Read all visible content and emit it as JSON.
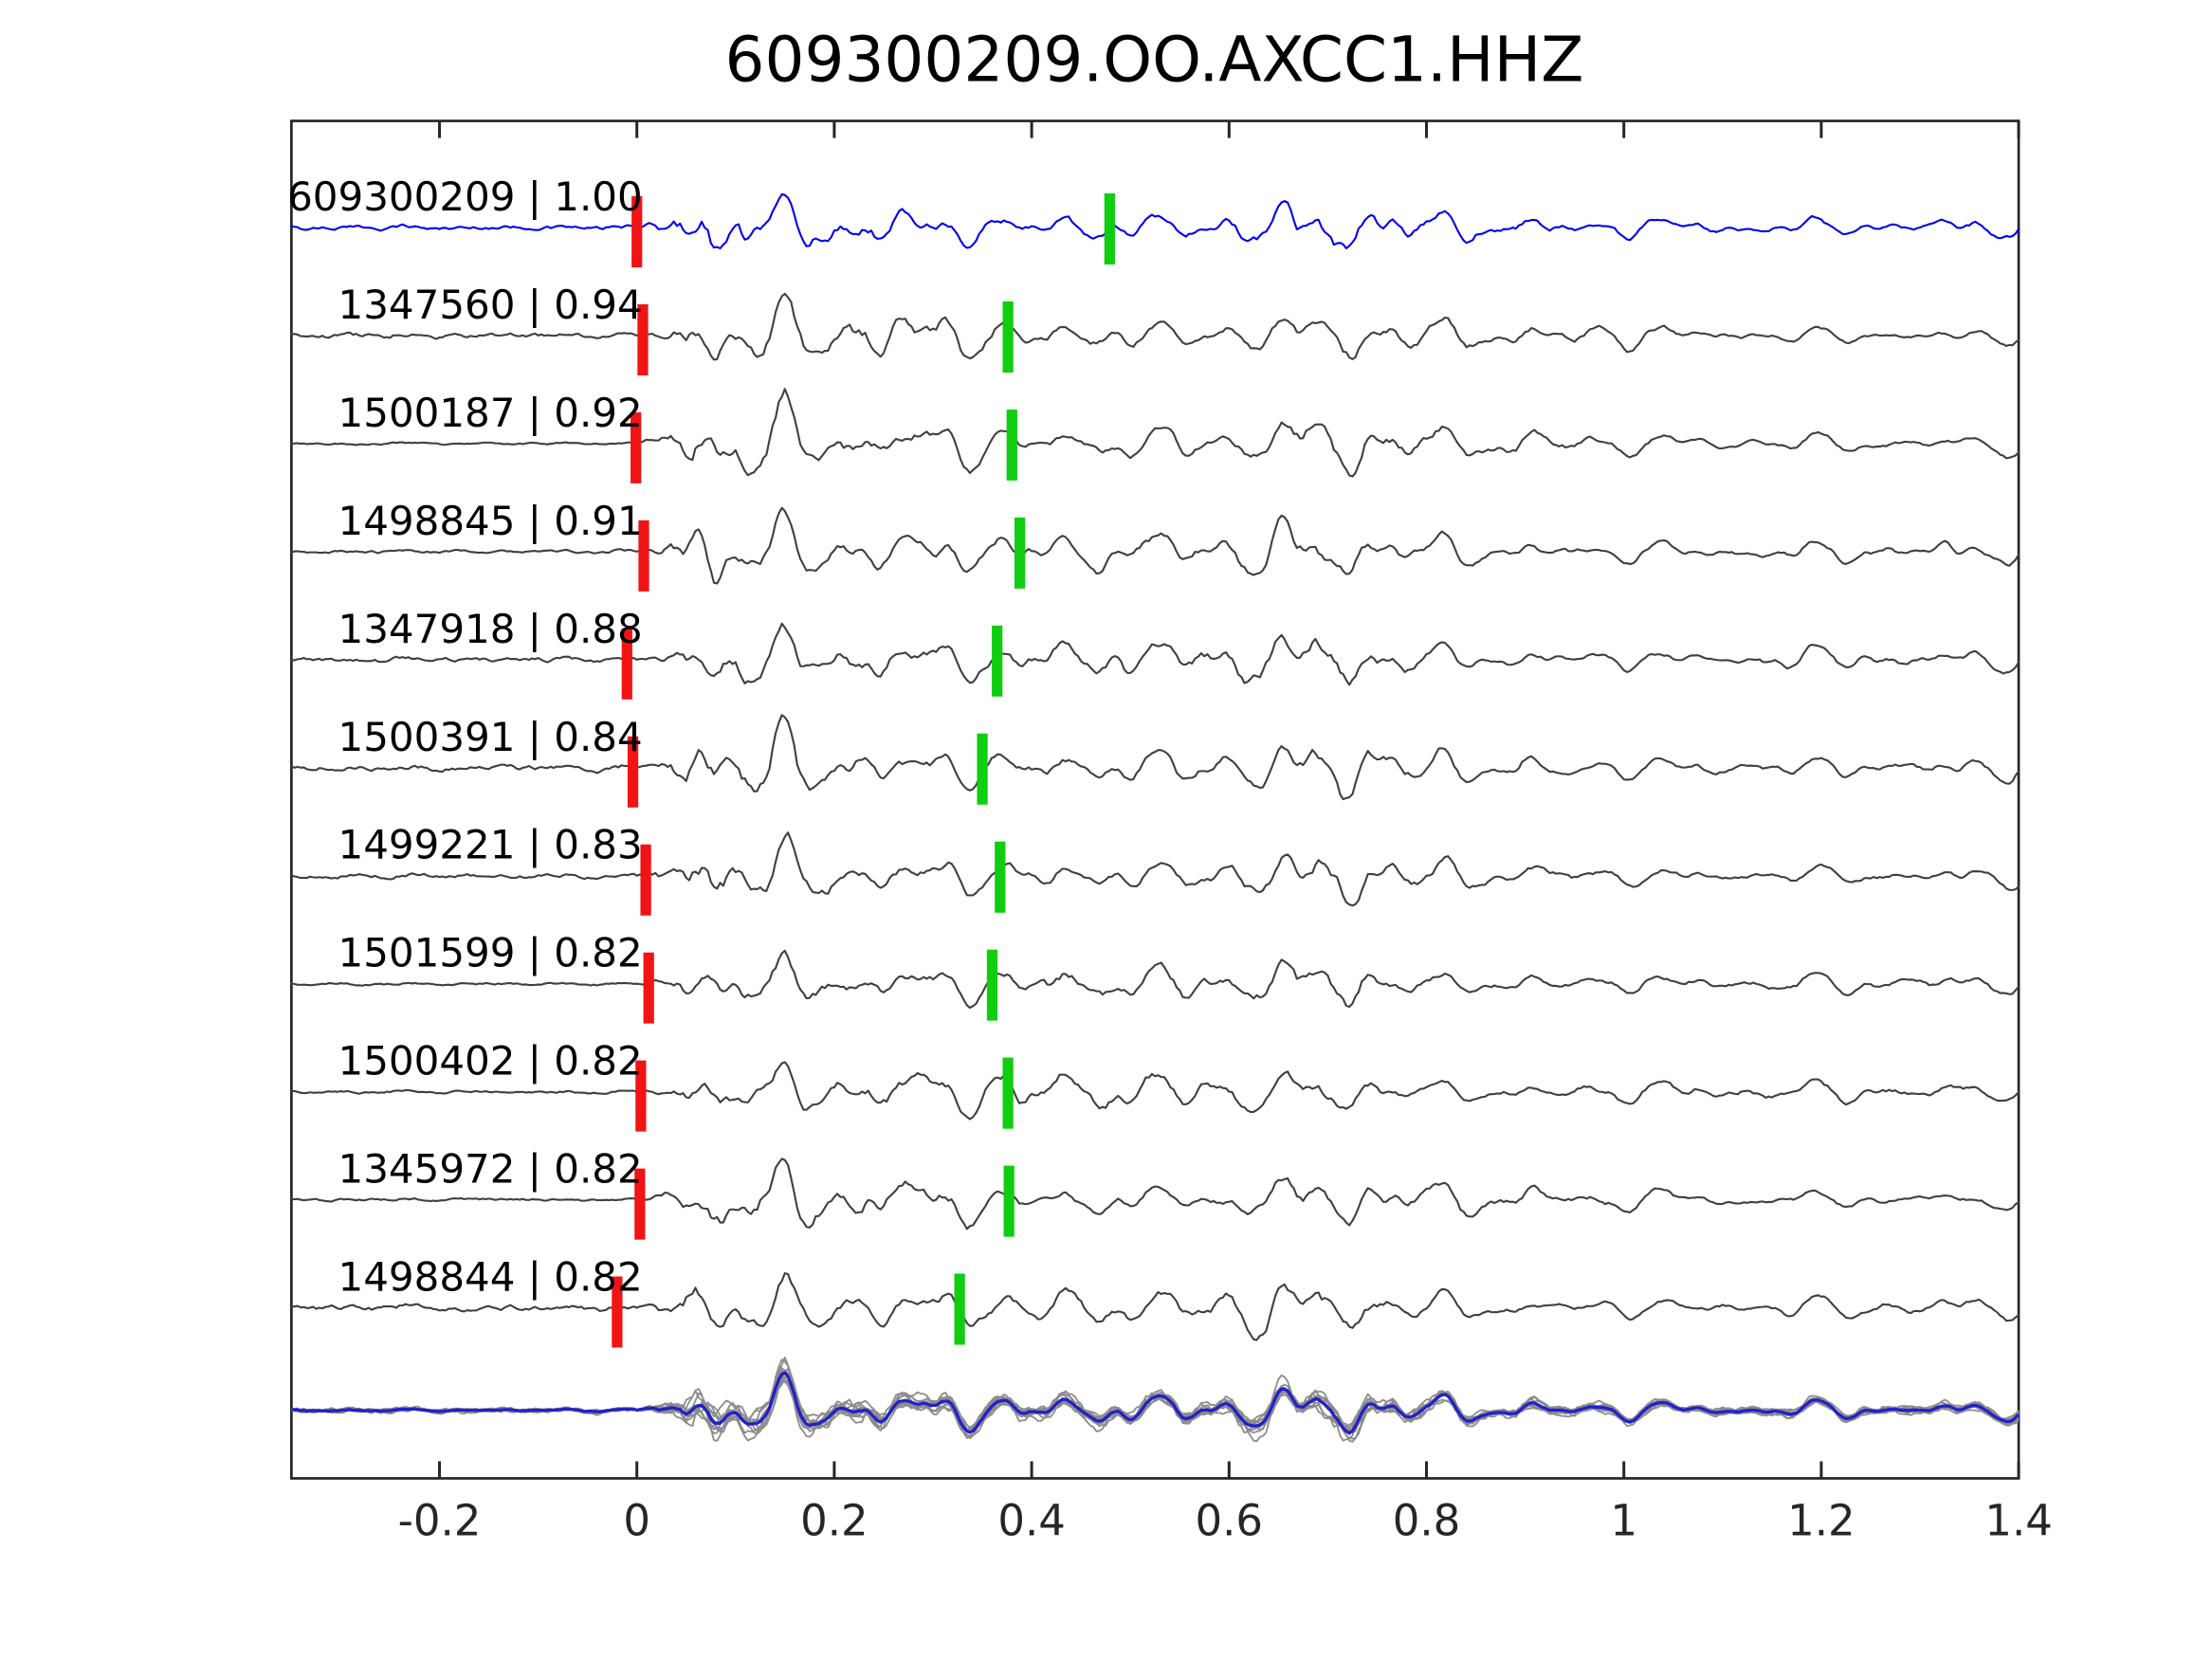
{
  "title": "609300209.OO.AXCC1.HHZ",
  "colors": {
    "background": "#ffffff",
    "axis": "#262626",
    "title_text": "#000000",
    "label_text": "#000000",
    "template_trace": "#0000ee",
    "trace": "#3f3f3f",
    "overlay_trace": "#8c8c8c",
    "stack_trace": "#2121cc",
    "pick_red": "#f01414",
    "pick_green": "#10cd10"
  },
  "chart_data": {
    "type": "line",
    "title": "609300209.OO.AXCC1.HHZ",
    "xlabel": "",
    "ylabel": "",
    "xlim": [
      -0.35,
      1.4
    ],
    "grid": false,
    "legend": false,
    "x_ticks": [
      -0.2,
      0,
      0.2,
      0.4,
      0.6,
      0.8,
      1,
      1.2,
      1.4
    ],
    "x_tick_labels": [
      "-0.2",
      "0",
      "0.2",
      "0.4",
      "0.6",
      "0.8",
      "1",
      "1.2",
      "1.4"
    ],
    "traces": [
      {
        "id": "609300209",
        "correlation": 1.0,
        "label": "609300209 | 1.00",
        "is_template": true,
        "red_pick_x": 0.0,
        "green_pick_x": 0.479
      },
      {
        "id": "1347560",
        "correlation": 0.94,
        "label": "1347560 | 0.94",
        "is_template": false,
        "red_pick_x": 0.006,
        "green_pick_x": 0.376
      },
      {
        "id": "1500187",
        "correlation": 0.92,
        "label": "1500187 | 0.92",
        "is_template": false,
        "red_pick_x": -0.001,
        "green_pick_x": 0.38
      },
      {
        "id": "1498845",
        "correlation": 0.91,
        "label": "1498845 | 0.91",
        "is_template": false,
        "red_pick_x": 0.007,
        "green_pick_x": 0.388
      },
      {
        "id": "1347918",
        "correlation": 0.88,
        "label": "1347918 | 0.88",
        "is_template": false,
        "red_pick_x": -0.01,
        "green_pick_x": 0.365
      },
      {
        "id": "1500391",
        "correlation": 0.84,
        "label": "1500391 | 0.84",
        "is_template": false,
        "red_pick_x": -0.004,
        "green_pick_x": 0.35
      },
      {
        "id": "1499221",
        "correlation": 0.83,
        "label": "1499221 | 0.83",
        "is_template": false,
        "red_pick_x": 0.009,
        "green_pick_x": 0.368
      },
      {
        "id": "1501599",
        "correlation": 0.82,
        "label": "1501599 | 0.82",
        "is_template": false,
        "red_pick_x": 0.012,
        "green_pick_x": 0.36
      },
      {
        "id": "1500402",
        "correlation": 0.82,
        "label": "1500402 | 0.82",
        "is_template": false,
        "red_pick_x": 0.004,
        "green_pick_x": 0.376
      },
      {
        "id": "1345972",
        "correlation": 0.82,
        "label": "1345972 | 0.82",
        "is_template": false,
        "red_pick_x": 0.003,
        "green_pick_x": 0.377
      },
      {
        "id": "1498844",
        "correlation": 0.82,
        "label": "1498844 | 0.82",
        "is_template": false,
        "red_pick_x": -0.02,
        "green_pick_x": 0.327
      }
    ],
    "overlay": {
      "description": "all traces overlaid aligned at 0 (gray) with stacked trace on top (blue)"
    }
  }
}
